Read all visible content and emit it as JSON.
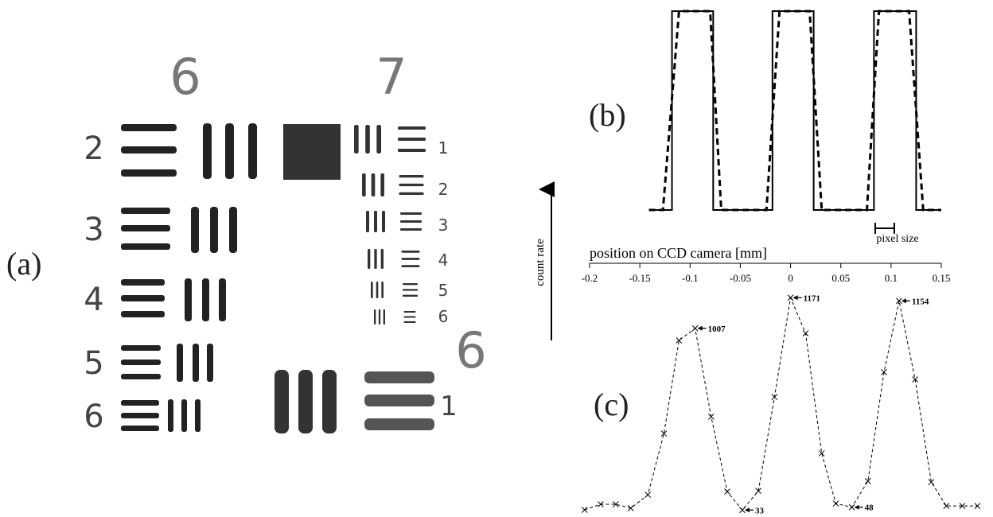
{
  "panel_a": {
    "label": "(a)",
    "group_labels": [
      "6",
      "7",
      "6"
    ],
    "element_labels": [
      "2",
      "3",
      "4",
      "5",
      "6"
    ],
    "group7_element_labels": [
      "1",
      "2",
      "3",
      "4",
      "5",
      "6"
    ],
    "large_element_label": "1"
  },
  "chart_data": [
    {
      "type": "line",
      "label": "(b)",
      "xlabel": "position on CCD camera [mm]",
      "annotation": "pixel size",
      "xlim": [
        -0.2,
        0.15
      ],
      "xticks": [
        -0.2,
        -0.15,
        -0.1,
        -0.05,
        0,
        0.05,
        0.1,
        0.15
      ],
      "series": [
        {
          "style": "solid",
          "color": "#000000",
          "x": [
            -0.141,
            -0.118,
            -0.118,
            -0.077,
            -0.077,
            -0.018,
            -0.018,
            0.023,
            0.023,
            0.083,
            0.083,
            0.125,
            0.125,
            0.15
          ],
          "values": [
            0,
            0,
            1,
            1,
            0,
            0,
            1,
            1,
            0,
            0,
            1,
            1,
            0,
            0
          ]
        },
        {
          "style": "dashed",
          "color": "#000000",
          "x": [
            -0.141,
            -0.127,
            -0.111,
            -0.08,
            -0.069,
            -0.024,
            -0.011,
            0.019,
            0.031,
            0.076,
            0.088,
            0.118,
            0.132,
            0.15
          ],
          "values": [
            0,
            0,
            1,
            1,
            0,
            0,
            1,
            1,
            0,
            0,
            1,
            1,
            0,
            0
          ]
        }
      ]
    },
    {
      "type": "line",
      "label": "(c)",
      "ylabel": "count rate",
      "color": "#000000",
      "x": [
        -0.205,
        -0.189,
        -0.174,
        -0.159,
        -0.142,
        -0.126,
        -0.111,
        -0.095,
        -0.079,
        -0.063,
        -0.048,
        -0.032,
        -0.016,
        0,
        0.015,
        0.031,
        0.045,
        0.061,
        0.077,
        0.093,
        0.108,
        0.124,
        0.14,
        0.155,
        0.171,
        0.186
      ],
      "values": [
        34,
        64,
        64,
        43,
        115,
        443,
        942,
        1007,
        533,
        132,
        33,
        136,
        639,
        1171,
        980,
        337,
        68,
        48,
        188,
        772,
        1154,
        733,
        183,
        55,
        55,
        55
      ]
    }
  ]
}
